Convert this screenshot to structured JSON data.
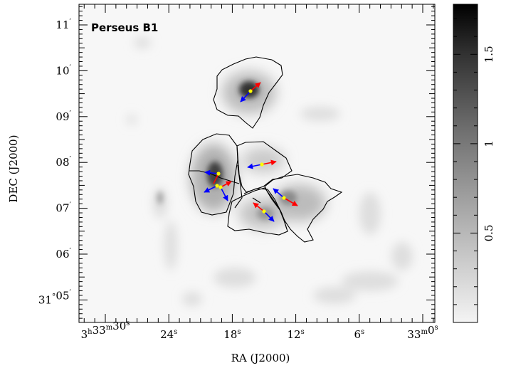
{
  "figure": {
    "field_label": "Perseus B1",
    "xlabel": "RA (J2000)",
    "ylabel": "DEC (J2000)",
    "ra_ticks": [
      {
        "seconds": 30,
        "main": "3",
        "h": "h",
        "mm": "33",
        "m": "m",
        "ss": "30",
        "s": "s"
      },
      {
        "seconds": 24,
        "main": "24",
        "s": "s"
      },
      {
        "seconds": 18,
        "main": "18",
        "s": "s"
      },
      {
        "seconds": 12,
        "main": "12",
        "s": "s"
      },
      {
        "seconds": 6,
        "main": "6",
        "s": "s"
      },
      {
        "seconds": 0,
        "main": "33",
        "m": "m",
        "ss": "0",
        "s": "s"
      }
    ],
    "dec_ticks": [
      {
        "arcmin": 11,
        "label": "11",
        "prime": "′"
      },
      {
        "arcmin": 10,
        "label": "10",
        "prime": "′"
      },
      {
        "arcmin": 9,
        "label": "09",
        "prime": "′"
      },
      {
        "arcmin": 8,
        "label": "08",
        "prime": "′"
      },
      {
        "arcmin": 7,
        "label": "07",
        "prime": "′"
      },
      {
        "arcmin": 6,
        "label": "06",
        "prime": "′"
      },
      {
        "arcmin": 5,
        "label": "31",
        "deg": "°",
        "sub": "05",
        "prime": "′"
      }
    ],
    "colorbar": {
      "ticks": [
        {
          "value": 0.5,
          "label": "0.5"
        },
        {
          "value": 1.0,
          "label": "1"
        },
        {
          "value": 1.5,
          "label": "1.5"
        }
      ],
      "min": 0.0,
      "max": 1.78
    },
    "colors": {
      "arrow_red": "#ff0000",
      "arrow_blue": "#0000ff",
      "marker_yellow": "#ffff00",
      "contour": "#000000"
    }
  }
}
